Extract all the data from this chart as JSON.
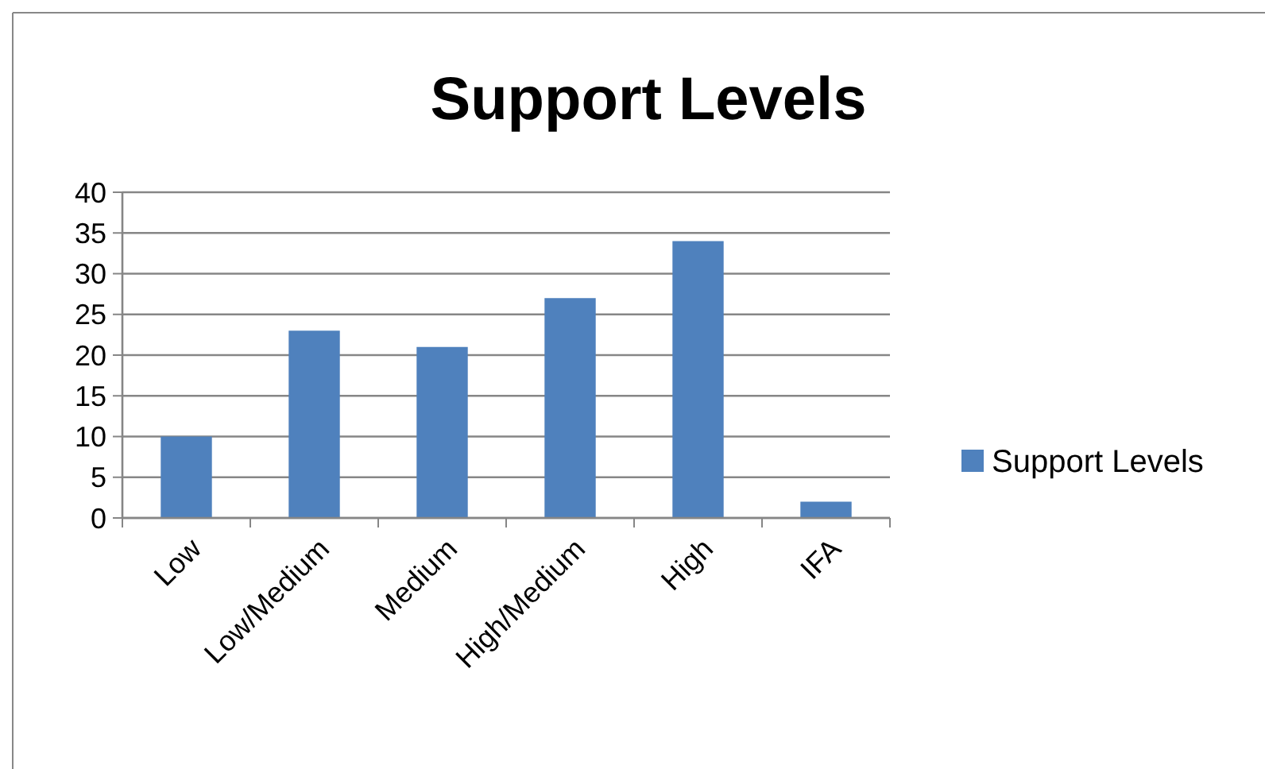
{
  "chart_data": {
    "type": "bar",
    "title": "Support Levels",
    "categories": [
      "Low",
      "Low/Medium",
      "Medium",
      "High/Medium",
      "High",
      "IFA"
    ],
    "series": [
      {
        "name": "Support Levels",
        "color": "#4f81bd",
        "values": [
          10,
          23,
          21,
          27,
          34,
          2
        ]
      }
    ],
    "ylim": [
      0,
      40
    ],
    "yticks": [
      0,
      5,
      10,
      15,
      20,
      25,
      30,
      35,
      40
    ],
    "grid": "y",
    "legend": "right"
  }
}
